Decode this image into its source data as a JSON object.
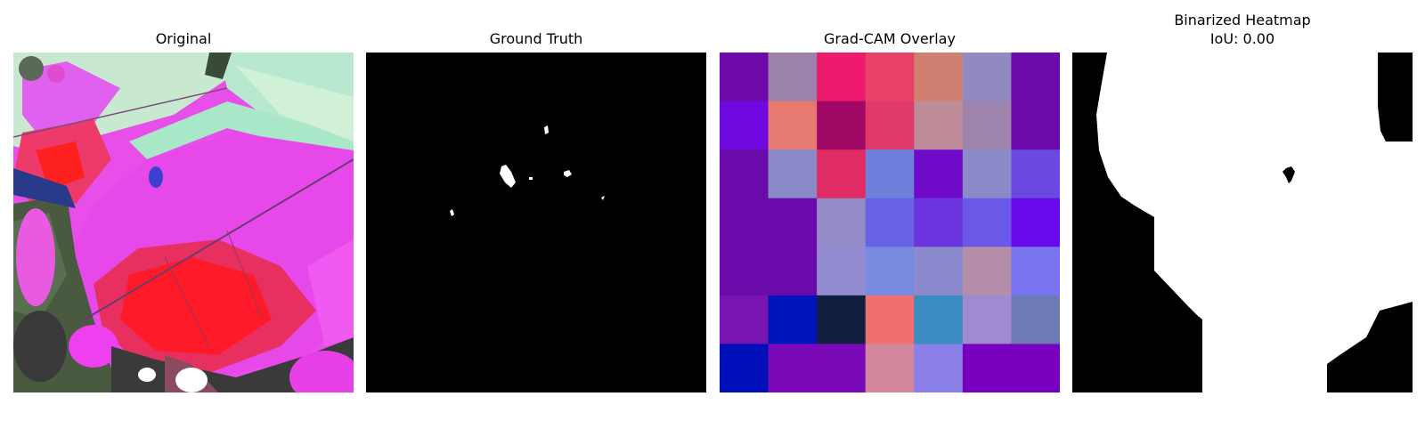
{
  "panels": [
    {
      "title": "Original"
    },
    {
      "title": "Ground Truth"
    },
    {
      "title": "Grad-CAM Overlay"
    },
    {
      "title": "Binarized Heatmap",
      "subtitle": "IoU: 0.00"
    }
  ],
  "gradcam_grid": {
    "rows": 7,
    "cols": 7,
    "colors": [
      [
        "#6f0aa8",
        "#9c82aa",
        "#ee1a6e",
        "#e8426a",
        "#cf8070",
        "#918ac0",
        "#6a0aa8"
      ],
      [
        "#6e0ae0",
        "#e67a70",
        "#a00a66",
        "#e03a6a",
        "#bd8c98",
        "#9e84ac",
        "#6a0aa8"
      ],
      [
        "#6a0aaa",
        "#8a8ac8",
        "#e02c64",
        "#6e80dc",
        "#6e0ac8",
        "#8a8ac8",
        "#6a4ae0"
      ],
      [
        "#6a0aaa",
        "#6a0aaa",
        "#948cc8",
        "#6a62e6",
        "#6a34de",
        "#6a58e6",
        "#6a0aec"
      ],
      [
        "#6a0aaa",
        "#6a0aaa",
        "#948cd0",
        "#7a8ae0",
        "#8a8acc",
        "#b48ea8",
        "#7a74f0"
      ],
      [
        "#7a14b0",
        "#0014bc",
        "#122040",
        "#f07070",
        "#3a8cc0",
        "#a08ad0",
        "#6e7ab4"
      ],
      [
        "#0010b8",
        "#7a0ab8",
        "#7a0ab8",
        "#d4869c",
        "#8a80e8",
        "#7a00c0",
        "#7a00c0"
      ]
    ]
  }
}
